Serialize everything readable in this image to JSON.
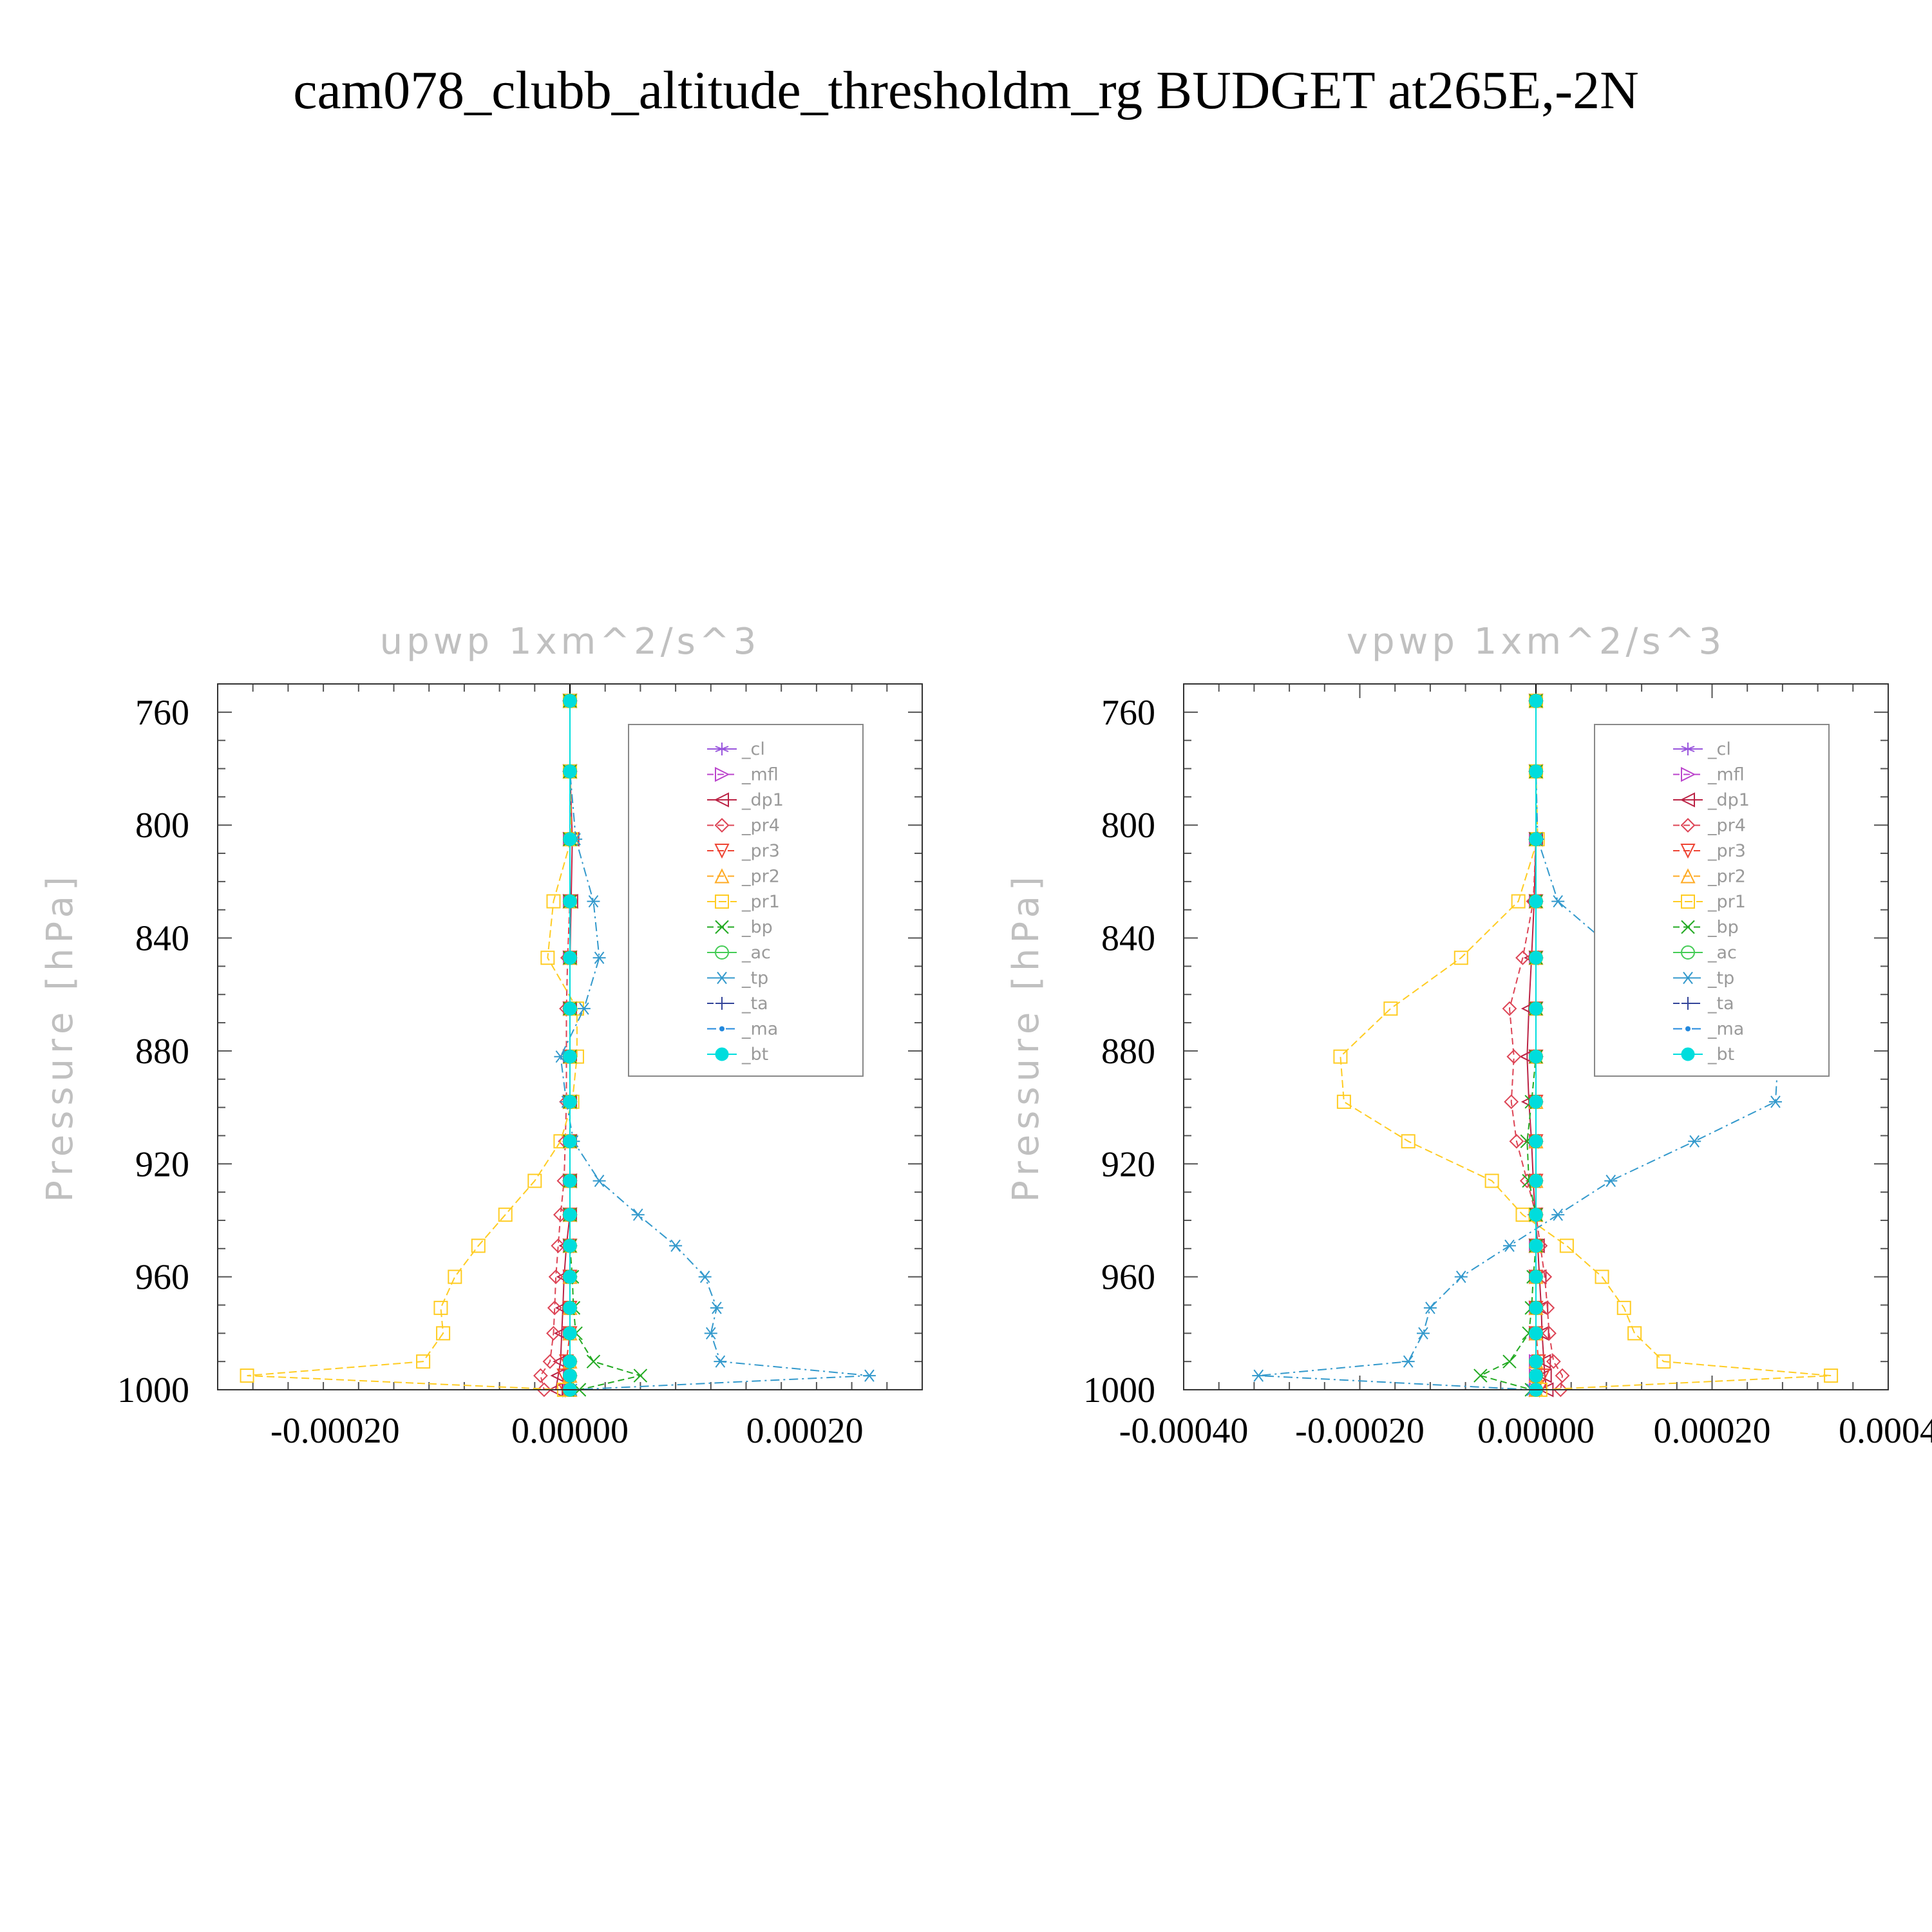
{
  "title": "cam078_clubb_altitude_thresholdm_rg  BUDGET at265E,-2N",
  "chart_data": [
    {
      "type": "line",
      "title": "upwp    1xm^2/s^3",
      "xlabel": "",
      "ylabel": "Pressure  [hPa]",
      "xlim": [
        -0.0003,
        0.0003
      ],
      "ylim": [
        1000,
        750
      ],
      "xticks": [
        -0.0002,
        0.0,
        0.0002
      ],
      "xtick_labels": [
        "-0.00020",
        "0.00000",
        "0.00020"
      ],
      "yticks": [
        760,
        800,
        840,
        880,
        920,
        960,
        1000
      ],
      "grid": false,
      "legend_position": "top-right",
      "y": [
        756,
        781,
        805,
        827,
        847,
        865,
        882,
        898,
        912,
        926,
        938,
        949,
        960,
        971,
        980,
        990,
        995,
        1000
      ],
      "series": [
        {
          "name": "_cl",
          "color": "#9955dd",
          "dash": "none",
          "marker": "star",
          "values": [
            0,
            0,
            0,
            0,
            0,
            0,
            0,
            0,
            0,
            0,
            0,
            0,
            0,
            0,
            0,
            0,
            0,
            0
          ]
        },
        {
          "name": "_mfl",
          "color": "#bb44cc",
          "dash": "10,6",
          "marker": "triangle-right",
          "values": [
            0,
            0,
            0,
            0,
            0,
            0,
            0,
            0,
            0,
            0,
            0,
            0,
            0,
            0,
            0,
            0,
            0,
            0
          ]
        },
        {
          "name": "_dp1",
          "color": "#bb2244",
          "dash": "none",
          "marker": "triangle-left",
          "values": [
            0,
            0,
            2e-06,
            1e-06,
            0,
            0,
            0,
            0,
            0,
            0,
            0,
            -3e-06,
            -5e-06,
            -6e-06,
            -7e-06,
            -8e-06,
            -1e-05,
            -1.2e-05
          ]
        },
        {
          "name": "_pr4",
          "color": "#dd4455",
          "dash": "10,6",
          "marker": "diamond",
          "values": [
            0,
            0,
            0,
            0,
            -2e-06,
            -3e-06,
            -3e-06,
            -3e-06,
            -4e-06,
            -5e-06,
            -8e-06,
            -1e-05,
            -1.2e-05,
            -1.3e-05,
            -1.4e-05,
            -1.7e-05,
            -2.5e-05,
            -2.2e-05
          ]
        },
        {
          "name": "_pr3",
          "color": "#ee4433",
          "dash": "10,6",
          "marker": "triangle-down",
          "values": [
            0,
            0,
            0,
            0,
            0,
            0,
            0,
            0,
            0,
            0,
            0,
            0,
            0,
            0,
            0,
            -3e-06,
            -5e-06,
            -4e-06
          ]
        },
        {
          "name": "_pr2",
          "color": "#ffaa22",
          "dash": "10,6",
          "marker": "triangle-up",
          "values": [
            0,
            0,
            0,
            0,
            0,
            0,
            0,
            0,
            0,
            0,
            0,
            0,
            0,
            0,
            0,
            0,
            0,
            0
          ]
        },
        {
          "name": "_pr1",
          "color": "#ffcc22",
          "dash": "12,6",
          "marker": "square",
          "values": [
            0,
            0,
            1e-06,
            -1.4e-05,
            -1.9e-05,
            6e-06,
            6e-06,
            2e-06,
            -8e-06,
            -3e-05,
            -5.5e-05,
            -7.8e-05,
            -9.8e-05,
            -0.00011,
            -0.000108,
            -0.000125,
            -0.000275,
            -5e-06
          ]
        },
        {
          "name": "_bp",
          "color": "#22aa22",
          "dash": "10,6",
          "marker": "x",
          "values": [
            0,
            0,
            0,
            0,
            0,
            0,
            0,
            0,
            0,
            0,
            0,
            0,
            2e-06,
            3e-06,
            5e-06,
            2e-05,
            6e-05,
            8e-06
          ]
        },
        {
          "name": "_ac",
          "color": "#44cc55",
          "dash": "none",
          "marker": "circle",
          "values": [
            0,
            0,
            0,
            0,
            0,
            0,
            0,
            0,
            0,
            0,
            0,
            0,
            0,
            0,
            0,
            0,
            0,
            0
          ]
        },
        {
          "name": "_tp",
          "color": "#3399cc",
          "dash": "14,6,3,6",
          "marker": "asterisk",
          "values": [
            0,
            0,
            5e-06,
            2e-05,
            2.5e-05,
            1.2e-05,
            -8e-06,
            -3e-06,
            3e-06,
            2.5e-05,
            5.8e-05,
            9e-05,
            0.000115,
            0.000125,
            0.00012,
            0.000128,
            0.000255,
            2e-06
          ]
        },
        {
          "name": "_ta",
          "color": "#334499",
          "dash": "10,6",
          "marker": "plus",
          "values": [
            0,
            0,
            0,
            0,
            0,
            0,
            0,
            0,
            0,
            0,
            0,
            0,
            0,
            0,
            0,
            0,
            0,
            0
          ]
        },
        {
          "name": "_ma",
          "color": "#2288dd",
          "dash": "14,6,3,6",
          "marker": "dot",
          "values": [
            0,
            0,
            0,
            0,
            0,
            0,
            0,
            0,
            0,
            0,
            0,
            0,
            0,
            0,
            0,
            0,
            0,
            0
          ]
        },
        {
          "name": "_bt",
          "color": "#00dddd",
          "dash": "none",
          "marker": "filled-circle",
          "values": [
            0,
            0,
            0,
            0,
            0,
            0,
            0,
            0,
            0,
            0,
            0,
            0,
            0,
            0,
            0,
            0,
            0,
            0
          ]
        }
      ]
    },
    {
      "type": "line",
      "title": "vpwp    1xm^2/s^3",
      "xlabel": "",
      "ylabel": "Pressure  [hPa]",
      "xlim": [
        -0.0004,
        0.0004
      ],
      "ylim": [
        1000,
        750
      ],
      "xticks": [
        -0.0004,
        -0.0002,
        0.0,
        0.0002,
        0.0004
      ],
      "xtick_labels": [
        "-0.00040",
        "-0.00020",
        "0.00000",
        "0.00020",
        "0.0004"
      ],
      "yticks": [
        760,
        800,
        840,
        880,
        920,
        960,
        1000
      ],
      "grid": false,
      "legend_position": "top-right",
      "y": [
        756,
        781,
        805,
        827,
        847,
        865,
        882,
        898,
        912,
        926,
        938,
        949,
        960,
        971,
        980,
        990,
        995,
        1000
      ],
      "series": [
        {
          "name": "_cl",
          "color": "#9955dd",
          "dash": "none",
          "marker": "star",
          "values": [
            0,
            0,
            0,
            0,
            0,
            0,
            0,
            0,
            0,
            0,
            0,
            0,
            0,
            0,
            0,
            0,
            0,
            0
          ]
        },
        {
          "name": "_mfl",
          "color": "#bb44cc",
          "dash": "10,6",
          "marker": "triangle-right",
          "values": [
            0,
            0,
            0,
            0,
            0,
            0,
            0,
            0,
            0,
            0,
            0,
            0,
            0,
            0,
            0,
            0,
            0,
            0
          ]
        },
        {
          "name": "_dp1",
          "color": "#bb2244",
          "dash": "none",
          "marker": "triangle-left",
          "values": [
            0,
            0,
            0,
            -2e-06,
            -5e-06,
            -8e-06,
            -1e-05,
            -8e-06,
            -5e-06,
            -3e-06,
            -1e-06,
            2e-06,
            4e-06,
            6e-06,
            7e-06,
            9e-06,
            1e-05,
            1.2e-05
          ]
        },
        {
          "name": "_pr4",
          "color": "#dd4455",
          "dash": "10,6",
          "marker": "diamond",
          "values": [
            0,
            0,
            0,
            -3e-06,
            -1.5e-05,
            -3e-05,
            -2.5e-05,
            -2.8e-05,
            -2.2e-05,
            -1e-05,
            0,
            5e-06,
            1e-05,
            1.3e-05,
            1.5e-05,
            2e-05,
            3e-05,
            2.8e-05
          ]
        },
        {
          "name": "_pr3",
          "color": "#ee4433",
          "dash": "10,6",
          "marker": "triangle-down",
          "values": [
            0,
            0,
            0,
            0,
            0,
            0,
            0,
            0,
            0,
            0,
            0,
            0,
            0,
            0,
            0,
            3e-06,
            8e-06,
            4e-06
          ]
        },
        {
          "name": "_pr2",
          "color": "#ffaa22",
          "dash": "10,6",
          "marker": "triangle-up",
          "values": [
            0,
            0,
            0,
            0,
            0,
            0,
            0,
            0,
            0,
            0,
            0,
            0,
            0,
            0,
            0,
            0,
            0,
            0
          ]
        },
        {
          "name": "_pr1",
          "color": "#ffcc22",
          "dash": "12,6",
          "marker": "square",
          "values": [
            0,
            0,
            2e-06,
            -2e-05,
            -8.5e-05,
            -0.000165,
            -0.000222,
            -0.000218,
            -0.000145,
            -5e-05,
            -1.5e-05,
            3.5e-05,
            7.5e-05,
            0.0001,
            0.000112,
            0.000145,
            0.000335,
            5e-06
          ]
        },
        {
          "name": "_bp",
          "color": "#22aa22",
          "dash": "10,6",
          "marker": "x",
          "values": [
            0,
            0,
            0,
            0,
            0,
            0,
            0,
            -5e-06,
            -1e-05,
            -8e-06,
            0,
            0,
            -3e-06,
            -5e-06,
            -8e-06,
            -3e-05,
            -6.3e-05,
            -5e-06
          ]
        },
        {
          "name": "_ac",
          "color": "#44cc55",
          "dash": "none",
          "marker": "circle",
          "values": [
            0,
            0,
            0,
            0,
            0,
            0,
            0,
            0,
            0,
            0,
            0,
            0,
            0,
            0,
            0,
            0,
            0,
            0
          ]
        },
        {
          "name": "_tp",
          "color": "#3399cc",
          "dash": "14,6,3,6",
          "marker": "asterisk",
          "values": [
            0,
            0,
            2e-06,
            2.5e-05,
            0.0001,
            0.00017,
            0.000275,
            0.000272,
            0.00018,
            8.5e-05,
            2.5e-05,
            -3e-05,
            -8.5e-05,
            -0.00012,
            -0.000128,
            -0.000145,
            -0.000315,
            -5e-06
          ]
        },
        {
          "name": "_ta",
          "color": "#334499",
          "dash": "10,6",
          "marker": "plus",
          "values": [
            0,
            0,
            0,
            0,
            0,
            0,
            0,
            0,
            0,
            0,
            0,
            0,
            0,
            0,
            0,
            0,
            0,
            0
          ]
        },
        {
          "name": "_ma",
          "color": "#2288dd",
          "dash": "14,6,3,6",
          "marker": "dot",
          "values": [
            0,
            0,
            0,
            0,
            0,
            0,
            0,
            0,
            0,
            0,
            0,
            0,
            0,
            0,
            0,
            0,
            0,
            0
          ]
        },
        {
          "name": "_bt",
          "color": "#00dddd",
          "dash": "none",
          "marker": "filled-circle",
          "values": [
            0,
            0,
            0,
            0,
            0,
            0,
            0,
            0,
            0,
            0,
            0,
            0,
            0,
            0,
            0,
            0,
            0,
            0
          ]
        }
      ]
    }
  ]
}
